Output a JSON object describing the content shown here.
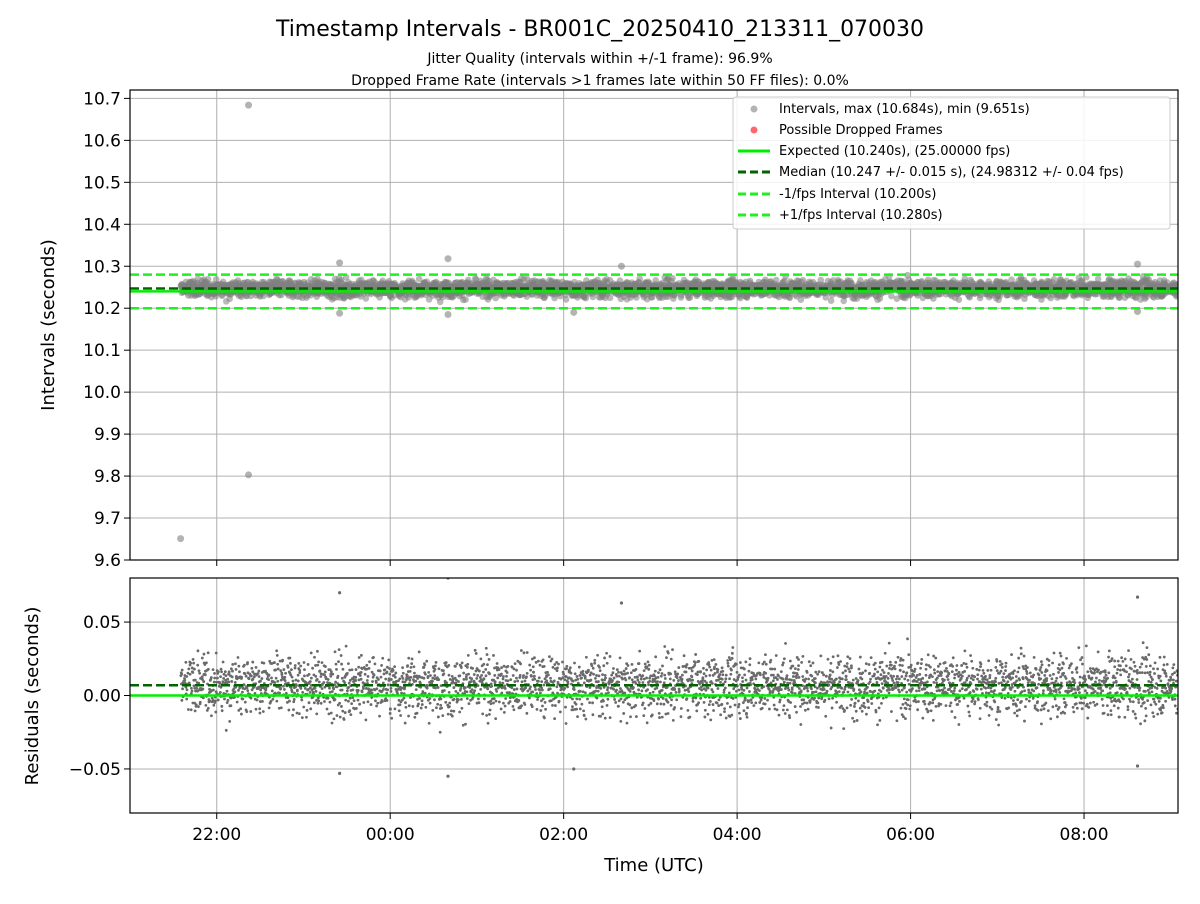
{
  "colors": {
    "expected": "#00ee00",
    "median": "#006400",
    "interval_band": "#22ee22",
    "points": "#808080",
    "dropped": "#ff4444",
    "grid": "#b0b0b0"
  },
  "chart_data": [
    {
      "type": "scatter",
      "title": "Timestamp Intervals - BR001C_20250410_213311_070030",
      "subtitle_1": "Jitter Quality (intervals within +/-1 frame): 96.9%",
      "subtitle_2": "Dropped Frame Rate (intervals >1 frames late within 50 FF files): 0.0%",
      "xlabel": "",
      "ylabel": "Intervals (seconds)",
      "ylim": [
        9.6,
        10.72
      ],
      "yticks": [
        "9.6",
        "9.7",
        "9.8",
        "9.9",
        "10.0",
        "10.1",
        "10.2",
        "10.3",
        "10.4",
        "10.5",
        "10.6",
        "10.7"
      ],
      "x_range_utc": [
        "21:00",
        "09:05"
      ],
      "grid": true,
      "legend_placement": "top-right",
      "legend": [
        {
          "label": "Intervals, max (10.684s), min (9.651s)",
          "kind": "point-gray"
        },
        {
          "label": "Possible Dropped Frames",
          "kind": "point-red"
        },
        {
          "label": "Expected (10.240s), (25.00000 fps)",
          "kind": "line-expected"
        },
        {
          "label": "Median (10.247 +/- 0.015 s), (24.98312 +/- 0.04 fps)",
          "kind": "line-median"
        },
        {
          "label": "-1/fps Interval (10.200s)",
          "kind": "line-band"
        },
        {
          "label": "+1/fps Interval (10.280s)",
          "kind": "line-band"
        }
      ],
      "reference_lines": {
        "expected": 10.24,
        "median": 10.247,
        "minus_1fps": 10.2,
        "plus_1fps": 10.28
      },
      "series": [
        {
          "name": "Intervals, max (10.684s), min (9.651s)",
          "points": [
            {
              "x": "21:35",
              "y": 9.651
            },
            {
              "x": "22:22",
              "y": 10.684
            },
            {
              "x": "22:22",
              "y": 9.803
            },
            {
              "x": "00:40",
              "y": 10.318
            },
            {
              "x": "23:25",
              "y": 10.308
            },
            {
              "x": "02:40",
              "y": 10.3
            },
            {
              "x": "08:37",
              "y": 10.305
            },
            {
              "x": "00:40",
              "y": 10.185
            },
            {
              "x": "23:25",
              "y": 10.188
            },
            {
              "x": "02:07",
              "y": 10.19
            },
            {
              "x": "08:37",
              "y": 10.192
            }
          ],
          "note_bulk": "dense cloud between 10.215 and 10.285 from 21:35 to 09:05"
        }
      ]
    },
    {
      "type": "scatter",
      "ylabel": "Residuals (seconds)",
      "xlabel": "Time (UTC)",
      "ylim": [
        -0.08,
        0.08
      ],
      "yticks": [
        "0.05",
        "0.00",
        "−0.05"
      ],
      "xticks": [
        "22:00",
        "00:00",
        "02:00",
        "04:00",
        "06:00",
        "08:00"
      ],
      "grid": true,
      "reference_lines": {
        "expected": 0.0,
        "median": 0.007
      },
      "series": [
        {
          "name": "Residuals",
          "points": [
            {
              "x": "23:25",
              "y": 0.07
            },
            {
              "x": "00:40",
              "y": 0.08
            },
            {
              "x": "02:40",
              "y": 0.063
            },
            {
              "x": "08:37",
              "y": 0.067
            },
            {
              "x": "00:40",
              "y": -0.055
            },
            {
              "x": "23:25",
              "y": -0.053
            },
            {
              "x": "02:07",
              "y": -0.05
            },
            {
              "x": "08:37",
              "y": -0.048
            }
          ],
          "note_bulk": "dense cloud between -0.03 and 0.045 from 21:35 to 09:05"
        }
      ]
    }
  ]
}
